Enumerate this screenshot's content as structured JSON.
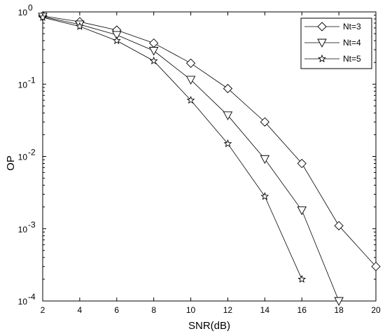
{
  "chart_data": {
    "type": "line",
    "title": "",
    "xlabel": "SNR(dB)",
    "ylabel": "OP",
    "xlim": [
      2,
      20
    ],
    "ylim": [
      0.0001,
      1
    ],
    "yscale": "log",
    "grid": false,
    "legend_position": "top-right",
    "x_ticks": [
      2,
      4,
      6,
      8,
      10,
      12,
      14,
      16,
      18,
      20
    ],
    "y_ticks": [
      {
        "value": 1,
        "base": "10",
        "exp": "0"
      },
      {
        "value": 0.1,
        "base": "10",
        "exp": "-1"
      },
      {
        "value": 0.01,
        "base": "10",
        "exp": "-2"
      },
      {
        "value": 0.001,
        "base": "10",
        "exp": "-3"
      },
      {
        "value": 0.0001,
        "base": "10",
        "exp": "-4"
      }
    ],
    "series": [
      {
        "name": "Nt=3",
        "marker": "diamond",
        "x": [
          2,
          4,
          6,
          8,
          10,
          12,
          14,
          16,
          18,
          20
        ],
        "y": [
          0.88,
          0.73,
          0.56,
          0.37,
          0.195,
          0.087,
          0.03,
          0.008,
          0.0011,
          0.0003
        ]
      },
      {
        "name": "Nt=4",
        "marker": "triangle-down",
        "x": [
          2,
          4,
          6,
          8,
          10,
          12,
          14,
          16,
          18
        ],
        "y": [
          0.86,
          0.67,
          0.48,
          0.29,
          0.115,
          0.037,
          0.0092,
          0.0018,
          0.0001
        ]
      },
      {
        "name": "Nt=5",
        "marker": "star",
        "x": [
          2,
          4,
          6,
          8,
          10,
          12,
          14,
          16
        ],
        "y": [
          0.84,
          0.63,
          0.4,
          0.21,
          0.06,
          0.015,
          0.0028,
          0.0002
        ]
      }
    ]
  }
}
